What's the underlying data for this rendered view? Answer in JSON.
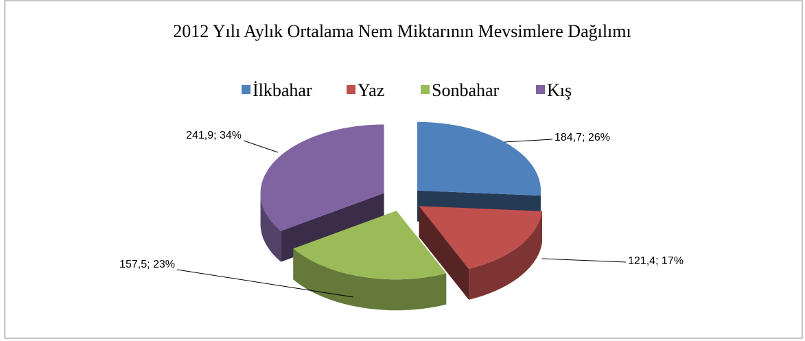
{
  "chart_data": {
    "type": "pie3d",
    "title": "2012 Yılı Aylık Ortalama Nem Miktarının Mevsimlere Dağılımı",
    "categories": [
      "İlkbahar",
      "Yaz",
      "Sonbahar",
      "Kış"
    ],
    "values": [
      184.7,
      121.4,
      157.5,
      241.9
    ],
    "percents": [
      26,
      17,
      23,
      34
    ],
    "value_labels": [
      "184,7; 26%",
      "121,4; 17%",
      "157,5; 23%",
      "241,9; 34%"
    ],
    "colors": [
      "#4f81bd",
      "#c0504d",
      "#9bbb59",
      "#8064a2"
    ],
    "legend": "top"
  }
}
